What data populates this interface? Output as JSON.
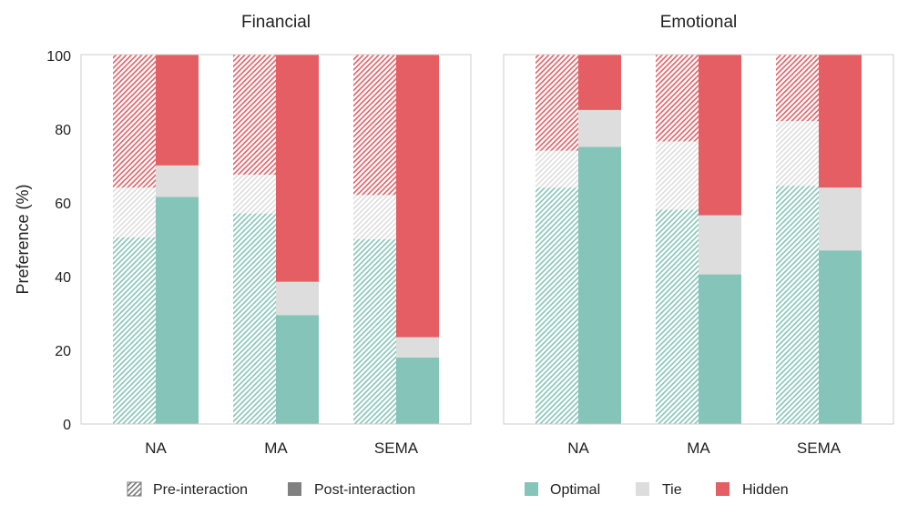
{
  "chart_data": {
    "type": "bar",
    "stacked": true,
    "ylabel": "Preference (%)",
    "ylim": [
      0,
      100
    ],
    "yticks": [
      0,
      20,
      40,
      60,
      80,
      100
    ],
    "categories": [
      "NA",
      "MA",
      "SEMA"
    ],
    "stack_order": [
      "Optimal",
      "Tie",
      "Hidden"
    ],
    "legend": {
      "patterns": [
        {
          "label": "Pre-interaction",
          "style": "hatched"
        },
        {
          "label": "Post-interaction",
          "style": "solid"
        }
      ],
      "colors": [
        {
          "label": "Optimal",
          "color": "#85c4b8"
        },
        {
          "label": "Tie",
          "color": "#dddddd"
        },
        {
          "label": "Hidden",
          "color": "#e45e64"
        }
      ]
    },
    "panels": [
      {
        "title": "Financial",
        "groups": [
          {
            "category": "NA",
            "pre": {
              "Optimal": 50.5,
              "Tie": 13.5,
              "Hidden": 36.0
            },
            "post": {
              "Optimal": 61.5,
              "Tie": 8.5,
              "Hidden": 30.0
            }
          },
          {
            "category": "MA",
            "pre": {
              "Optimal": 57.0,
              "Tie": 10.5,
              "Hidden": 32.5
            },
            "post": {
              "Optimal": 29.5,
              "Tie": 9.0,
              "Hidden": 61.5
            }
          },
          {
            "category": "SEMA",
            "pre": {
              "Optimal": 50.0,
              "Tie": 12.0,
              "Hidden": 38.0
            },
            "post": {
              "Optimal": 18.0,
              "Tie": 5.5,
              "Hidden": 76.5
            }
          }
        ]
      },
      {
        "title": "Emotional",
        "groups": [
          {
            "category": "NA",
            "pre": {
              "Optimal": 64.0,
              "Tie": 10.0,
              "Hidden": 26.0
            },
            "post": {
              "Optimal": 75.0,
              "Tie": 10.0,
              "Hidden": 15.0
            }
          },
          {
            "category": "MA",
            "pre": {
              "Optimal": 58.0,
              "Tie": 18.5,
              "Hidden": 23.5
            },
            "post": {
              "Optimal": 40.5,
              "Tie": 16.0,
              "Hidden": 43.5
            }
          },
          {
            "category": "SEMA",
            "pre": {
              "Optimal": 64.5,
              "Tie": 17.5,
              "Hidden": 18.0
            },
            "post": {
              "Optimal": 47.0,
              "Tie": 17.0,
              "Hidden": 36.0
            }
          }
        ]
      }
    ]
  }
}
